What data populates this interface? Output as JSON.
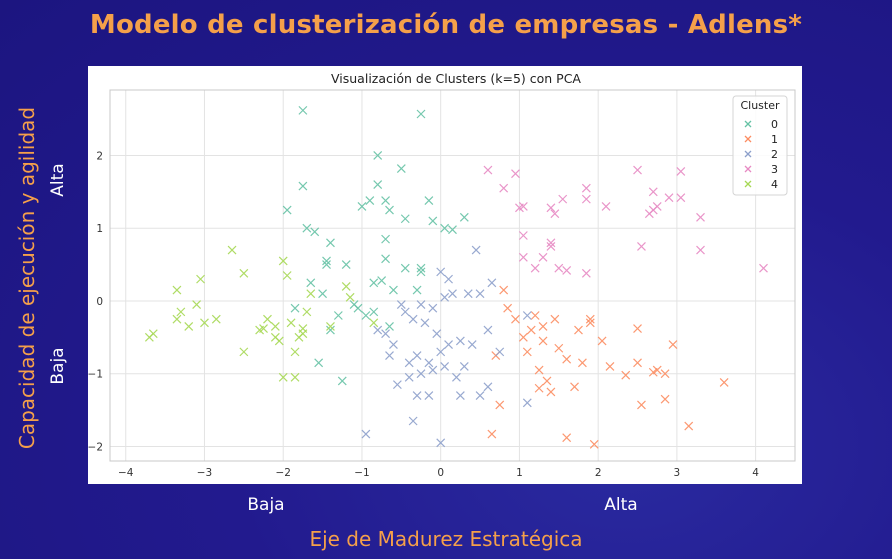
{
  "page": {
    "title": "Modelo de clusterización de empresas - Adlens*",
    "y_axis_title": "Capacidad de ejecución y agilidad",
    "y_high_label": "Alta",
    "y_low_label": "Baja",
    "x_low_label": "Baja",
    "x_high_label": "Alta",
    "x_axis_title": "Eje de Madurez Estratégica"
  },
  "chart_data": {
    "type": "scatter",
    "title": "Visualización de Clusters (k=5) con PCA",
    "xlabel": "",
    "ylabel": "",
    "xlim": [
      -4.2,
      4.5
    ],
    "ylim": [
      -2.2,
      2.9
    ],
    "xticks": [
      -4,
      -3,
      -2,
      -1,
      0,
      1,
      2,
      3,
      4
    ],
    "yticks": [
      -2,
      -1,
      0,
      1,
      2
    ],
    "xtick_labels": [
      "−4",
      "−3",
      "−2",
      "−1",
      "0",
      "1",
      "2",
      "3",
      "4"
    ],
    "ytick_labels": [
      "−2",
      "−1",
      "0",
      "1",
      "2"
    ],
    "grid": true,
    "marker": "x",
    "legend": {
      "title": "Cluster",
      "position": "top-right"
    },
    "series": [
      {
        "name": "0",
        "color": "#66c2a5",
        "points": [
          [
            -1.75,
            2.62
          ],
          [
            -0.25,
            2.57
          ],
          [
            -0.8,
            2.0
          ],
          [
            -0.5,
            1.82
          ],
          [
            -1.75,
            1.58
          ],
          [
            -0.8,
            1.6
          ],
          [
            -1.95,
            1.25
          ],
          [
            -1.0,
            1.3
          ],
          [
            -0.9,
            1.38
          ],
          [
            -0.7,
            1.38
          ],
          [
            -0.65,
            1.25
          ],
          [
            -0.45,
            1.13
          ],
          [
            -0.15,
            1.38
          ],
          [
            -0.1,
            1.1
          ],
          [
            0.15,
            0.98
          ],
          [
            0.3,
            1.15
          ],
          [
            -1.7,
            1.0
          ],
          [
            -1.6,
            0.95
          ],
          [
            -1.4,
            0.8
          ],
          [
            -0.7,
            0.85
          ],
          [
            -1.45,
            0.55
          ],
          [
            -1.45,
            0.5
          ],
          [
            -1.2,
            0.5
          ],
          [
            -0.7,
            0.58
          ],
          [
            -0.45,
            0.45
          ],
          [
            -0.25,
            0.4
          ],
          [
            -0.85,
            0.25
          ],
          [
            -0.75,
            0.28
          ],
          [
            -1.65,
            0.25
          ],
          [
            -1.5,
            0.1
          ],
          [
            -1.1,
            -0.05
          ],
          [
            -1.05,
            -0.1
          ],
          [
            -0.85,
            -0.15
          ],
          [
            -1.3,
            -0.2
          ],
          [
            -1.4,
            -0.4
          ],
          [
            -0.65,
            -0.35
          ],
          [
            -0.95,
            -0.2
          ],
          [
            -0.6,
            0.15
          ],
          [
            -0.25,
            0.45
          ],
          [
            -1.25,
            -1.1
          ],
          [
            -1.55,
            -0.85
          ],
          [
            0.05,
            1.0
          ],
          [
            -0.3,
            0.15
          ],
          [
            -1.85,
            -0.1
          ]
        ]
      },
      {
        "name": "1",
        "color": "#fc8d62",
        "points": [
          [
            0.8,
            0.15
          ],
          [
            0.85,
            -0.1
          ],
          [
            0.95,
            -0.25
          ],
          [
            1.05,
            -0.5
          ],
          [
            1.15,
            -0.4
          ],
          [
            1.2,
            -0.2
          ],
          [
            1.3,
            -0.35
          ],
          [
            1.3,
            -0.55
          ],
          [
            1.45,
            -0.25
          ],
          [
            1.5,
            -0.65
          ],
          [
            1.75,
            -0.4
          ],
          [
            1.9,
            -0.25
          ],
          [
            1.1,
            -0.7
          ],
          [
            1.25,
            -0.95
          ],
          [
            1.35,
            -1.1
          ],
          [
            1.4,
            -1.25
          ],
          [
            1.6,
            -0.8
          ],
          [
            1.8,
            -0.85
          ],
          [
            1.9,
            -0.3
          ],
          [
            2.05,
            -0.55
          ],
          [
            2.15,
            -0.9
          ],
          [
            2.35,
            -1.02
          ],
          [
            2.5,
            -0.85
          ],
          [
            2.5,
            -0.38
          ],
          [
            2.55,
            -1.43
          ],
          [
            2.7,
            -0.98
          ],
          [
            2.75,
            -0.95
          ],
          [
            2.85,
            -1.0
          ],
          [
            2.85,
            -1.35
          ],
          [
            2.95,
            -0.6
          ],
          [
            3.15,
            -1.72
          ],
          [
            3.6,
            -1.12
          ],
          [
            1.6,
            -1.88
          ],
          [
            1.95,
            -1.97
          ],
          [
            0.75,
            -1.43
          ],
          [
            0.7,
            -0.75
          ],
          [
            1.7,
            -1.18
          ],
          [
            0.65,
            -1.83
          ],
          [
            1.25,
            -1.2
          ]
        ]
      },
      {
        "name": "2",
        "color": "#8da0cb",
        "points": [
          [
            -0.95,
            -1.83
          ],
          [
            0.0,
            -1.95
          ],
          [
            -0.35,
            -1.65
          ],
          [
            -0.3,
            -1.3
          ],
          [
            -0.15,
            -1.3
          ],
          [
            -0.55,
            -1.15
          ],
          [
            -0.4,
            -1.05
          ],
          [
            -0.25,
            -1.0
          ],
          [
            -0.1,
            -0.95
          ],
          [
            0.05,
            -0.9
          ],
          [
            0.2,
            -1.05
          ],
          [
            0.25,
            -1.3
          ],
          [
            0.5,
            -1.3
          ],
          [
            0.6,
            -1.18
          ],
          [
            0.75,
            -0.7
          ],
          [
            0.4,
            -0.6
          ],
          [
            0.25,
            -0.55
          ],
          [
            0.1,
            -0.6
          ],
          [
            -0.05,
            -0.45
          ],
          [
            -0.2,
            -0.3
          ],
          [
            -0.35,
            -0.25
          ],
          [
            -0.6,
            -0.6
          ],
          [
            -0.65,
            -0.75
          ],
          [
            -0.8,
            -0.4
          ],
          [
            -0.7,
            -0.45
          ],
          [
            -0.45,
            -0.15
          ],
          [
            -0.25,
            -0.05
          ],
          [
            -0.1,
            -0.1
          ],
          [
            0.05,
            0.05
          ],
          [
            0.15,
            0.1
          ],
          [
            0.35,
            0.1
          ],
          [
            0.5,
            0.1
          ],
          [
            0.65,
            0.25
          ],
          [
            0.45,
            0.7
          ],
          [
            0.0,
            0.4
          ],
          [
            0.1,
            0.3
          ],
          [
            1.1,
            -1.4
          ],
          [
            1.1,
            -0.2
          ],
          [
            -0.4,
            -0.85
          ],
          [
            0.0,
            -0.7
          ],
          [
            -0.5,
            -0.05
          ],
          [
            -0.3,
            -0.75
          ],
          [
            0.3,
            -0.9
          ],
          [
            -0.15,
            -0.85
          ],
          [
            0.6,
            -0.4
          ]
        ]
      },
      {
        "name": "3",
        "color": "#e78ac3",
        "points": [
          [
            0.6,
            1.8
          ],
          [
            0.8,
            1.55
          ],
          [
            0.95,
            1.75
          ],
          [
            1.0,
            1.28
          ],
          [
            1.05,
            1.3
          ],
          [
            1.4,
            1.28
          ],
          [
            1.45,
            1.2
          ],
          [
            1.55,
            1.4
          ],
          [
            1.85,
            1.55
          ],
          [
            1.85,
            1.4
          ],
          [
            2.1,
            1.3
          ],
          [
            2.5,
            1.8
          ],
          [
            2.65,
            1.2
          ],
          [
            2.7,
            1.25
          ],
          [
            2.75,
            1.3
          ],
          [
            2.7,
            1.5
          ],
          [
            2.9,
            1.42
          ],
          [
            3.05,
            1.42
          ],
          [
            3.05,
            1.78
          ],
          [
            3.3,
            1.15
          ],
          [
            3.3,
            0.7
          ],
          [
            4.1,
            0.45
          ],
          [
            2.55,
            0.75
          ],
          [
            1.4,
            0.8
          ],
          [
            1.5,
            0.45
          ],
          [
            1.6,
            0.42
          ],
          [
            1.3,
            0.6
          ],
          [
            1.2,
            0.45
          ],
          [
            1.05,
            0.9
          ],
          [
            1.4,
            0.75
          ],
          [
            1.85,
            0.38
          ],
          [
            1.05,
            0.6
          ]
        ]
      },
      {
        "name": "4",
        "color": "#a6d854",
        "points": [
          [
            -3.7,
            -0.5
          ],
          [
            -3.65,
            -0.45
          ],
          [
            -3.35,
            -0.25
          ],
          [
            -3.3,
            -0.15
          ],
          [
            -3.35,
            0.15
          ],
          [
            -3.2,
            -0.35
          ],
          [
            -3.1,
            -0.05
          ],
          [
            -3.05,
            0.3
          ],
          [
            -3.0,
            -0.3
          ],
          [
            -2.85,
            -0.25
          ],
          [
            -2.65,
            0.7
          ],
          [
            -2.5,
            0.38
          ],
          [
            -2.5,
            -0.7
          ],
          [
            -2.3,
            -0.4
          ],
          [
            -2.25,
            -0.38
          ],
          [
            -2.2,
            -0.25
          ],
          [
            -2.1,
            -0.5
          ],
          [
            -2.05,
            -0.55
          ],
          [
            -2.0,
            0.55
          ],
          [
            -1.95,
            0.35
          ],
          [
            -1.9,
            -0.3
          ],
          [
            -1.85,
            -0.7
          ],
          [
            -1.8,
            -0.5
          ],
          [
            -1.75,
            -0.38
          ],
          [
            -1.7,
            -0.15
          ],
          [
            -1.65,
            0.1
          ],
          [
            -2.0,
            -1.05
          ],
          [
            -1.85,
            -1.05
          ],
          [
            -1.4,
            -0.35
          ],
          [
            -1.2,
            0.2
          ],
          [
            -1.15,
            0.05
          ],
          [
            -0.85,
            -0.3
          ],
          [
            -1.75,
            -0.45
          ],
          [
            -2.1,
            -0.35
          ]
        ]
      }
    ]
  }
}
